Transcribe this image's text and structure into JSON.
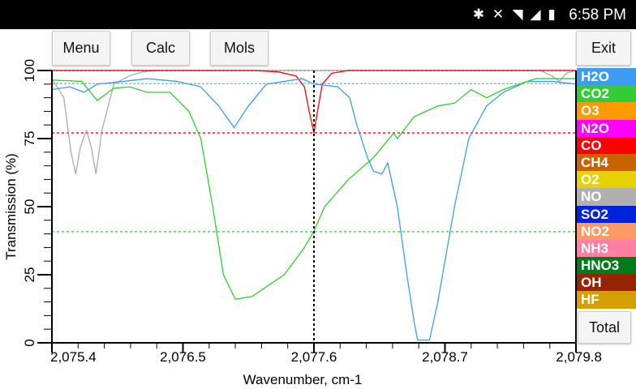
{
  "status": {
    "time": "6:58 PM",
    "icons": [
      "bluetooth-icon",
      "mute-icon",
      "wifi-icon",
      "signal-icon",
      "battery-icon"
    ]
  },
  "toolbar": {
    "menu": "Menu",
    "calc": "Calc",
    "mols": "Mols",
    "exit": "Exit",
    "total": "Total"
  },
  "legend": [
    {
      "label": "H2O",
      "color": "#3d9bf2"
    },
    {
      "label": "CO2",
      "color": "#33cc33"
    },
    {
      "label": "O3",
      "color": "#ff9900"
    },
    {
      "label": "N2O",
      "color": "#ff00ff"
    },
    {
      "label": "CO",
      "color": "#ff0000"
    },
    {
      "label": "CH4",
      "color": "#c86400"
    },
    {
      "label": "O2",
      "color": "#e6d200"
    },
    {
      "label": "NO",
      "color": "#b0b0b0"
    },
    {
      "label": "SO2",
      "color": "#0022dd"
    },
    {
      "label": "NO2",
      "color": "#ff9966"
    },
    {
      "label": "NH3",
      "color": "#ff80a0"
    },
    {
      "label": "HNO3",
      "color": "#007a1a"
    },
    {
      "label": "OH",
      "color": "#992200"
    },
    {
      "label": "HF",
      "color": "#d4a000"
    }
  ],
  "chart_data": {
    "type": "line",
    "xlabel": "Wavenumber, cm-1",
    "ylabel": "Transmission (%)",
    "xlim": [
      2075.4,
      2079.8
    ],
    "ylim": [
      0,
      100
    ],
    "xticks": [
      "2,075.4",
      "2,076.5",
      "2,077.6",
      "2,078.7",
      "2,079.8"
    ],
    "xtick_values": [
      2075.4,
      2076.5,
      2077.6,
      2078.7,
      2079.8
    ],
    "yticks": [
      "0",
      "25",
      "50",
      "75",
      "100"
    ],
    "cursor_x": 2077.6,
    "hlines": [
      {
        "y": 100,
        "color": "#aaaaaa"
      },
      {
        "y": 95.2,
        "color": "#3d9bf2"
      },
      {
        "y": 77.1,
        "color": "#ff0000"
      },
      {
        "y": 40.8,
        "color": "#33cc33"
      }
    ],
    "series": [
      {
        "name": "NO",
        "color": "#aaaaaa",
        "points": [
          [
            2075.4,
            97
          ],
          [
            2075.5,
            90
          ],
          [
            2075.56,
            70
          ],
          [
            2075.6,
            62
          ],
          [
            2075.64,
            72
          ],
          [
            2075.69,
            78
          ],
          [
            2075.73,
            72
          ],
          [
            2075.77,
            62
          ],
          [
            2075.82,
            78
          ],
          [
            2075.92,
            95
          ],
          [
            2076.05,
            98
          ],
          [
            2076.16,
            99.5
          ],
          [
            2076.3,
            100
          ],
          [
            2079.5,
            100
          ],
          [
            2079.6,
            98
          ],
          [
            2079.66,
            96
          ],
          [
            2079.72,
            99
          ],
          [
            2079.8,
            100
          ]
        ]
      },
      {
        "name": "CO",
        "color": "#ff0000",
        "points": [
          [
            2075.4,
            100
          ],
          [
            2077.1,
            100
          ],
          [
            2077.3,
            99.5
          ],
          [
            2077.45,
            98
          ],
          [
            2077.52,
            94
          ],
          [
            2077.56,
            85
          ],
          [
            2077.6,
            77
          ],
          [
            2077.63,
            85
          ],
          [
            2077.67,
            95
          ],
          [
            2077.75,
            99
          ],
          [
            2077.89,
            100
          ],
          [
            2079.8,
            100
          ]
        ]
      },
      {
        "name": "H2O",
        "color": "#3d9bf2",
        "points": [
          [
            2075.4,
            93
          ],
          [
            2075.55,
            94
          ],
          [
            2075.67,
            92
          ],
          [
            2075.78,
            95
          ],
          [
            2076.0,
            96
          ],
          [
            2076.2,
            97
          ],
          [
            2076.45,
            96
          ],
          [
            2076.65,
            94
          ],
          [
            2076.8,
            87
          ],
          [
            2076.93,
            79
          ],
          [
            2077.05,
            87
          ],
          [
            2077.2,
            95
          ],
          [
            2077.5,
            97
          ],
          [
            2077.6,
            95
          ],
          [
            2077.8,
            94
          ],
          [
            2077.9,
            90
          ],
          [
            2077.96,
            80
          ],
          [
            2078.05,
            68
          ],
          [
            2078.1,
            63
          ],
          [
            2078.17,
            62
          ],
          [
            2078.22,
            66
          ],
          [
            2078.3,
            50
          ],
          [
            2078.38,
            25
          ],
          [
            2078.44,
            8
          ],
          [
            2078.47,
            1
          ],
          [
            2078.57,
            1
          ],
          [
            2078.64,
            15
          ],
          [
            2078.72,
            35
          ],
          [
            2078.78,
            50
          ],
          [
            2078.9,
            75
          ],
          [
            2079.05,
            87
          ],
          [
            2079.19,
            92
          ],
          [
            2079.39,
            96
          ],
          [
            2079.6,
            96
          ],
          [
            2079.8,
            95
          ]
        ]
      },
      {
        "name": "CO2",
        "color": "#33cc33",
        "points": [
          [
            2075.4,
            96.5
          ],
          [
            2075.65,
            96
          ],
          [
            2075.78,
            89
          ],
          [
            2075.92,
            93.5
          ],
          [
            2076.05,
            94
          ],
          [
            2076.2,
            92
          ],
          [
            2076.39,
            92
          ],
          [
            2076.55,
            85
          ],
          [
            2076.65,
            75
          ],
          [
            2076.75,
            50
          ],
          [
            2076.84,
            25
          ],
          [
            2076.94,
            16
          ],
          [
            2077.08,
            17
          ],
          [
            2077.35,
            25
          ],
          [
            2077.52,
            35
          ],
          [
            2077.6,
            41
          ],
          [
            2077.69,
            50
          ],
          [
            2077.89,
            60
          ],
          [
            2078.1,
            68
          ],
          [
            2078.27,
            77
          ],
          [
            2078.3,
            75
          ],
          [
            2078.44,
            83
          ],
          [
            2078.64,
            87
          ],
          [
            2078.78,
            88
          ],
          [
            2078.92,
            93
          ],
          [
            2079.05,
            90
          ],
          [
            2079.19,
            93
          ],
          [
            2079.46,
            97
          ],
          [
            2079.8,
            97
          ]
        ]
      }
    ]
  }
}
